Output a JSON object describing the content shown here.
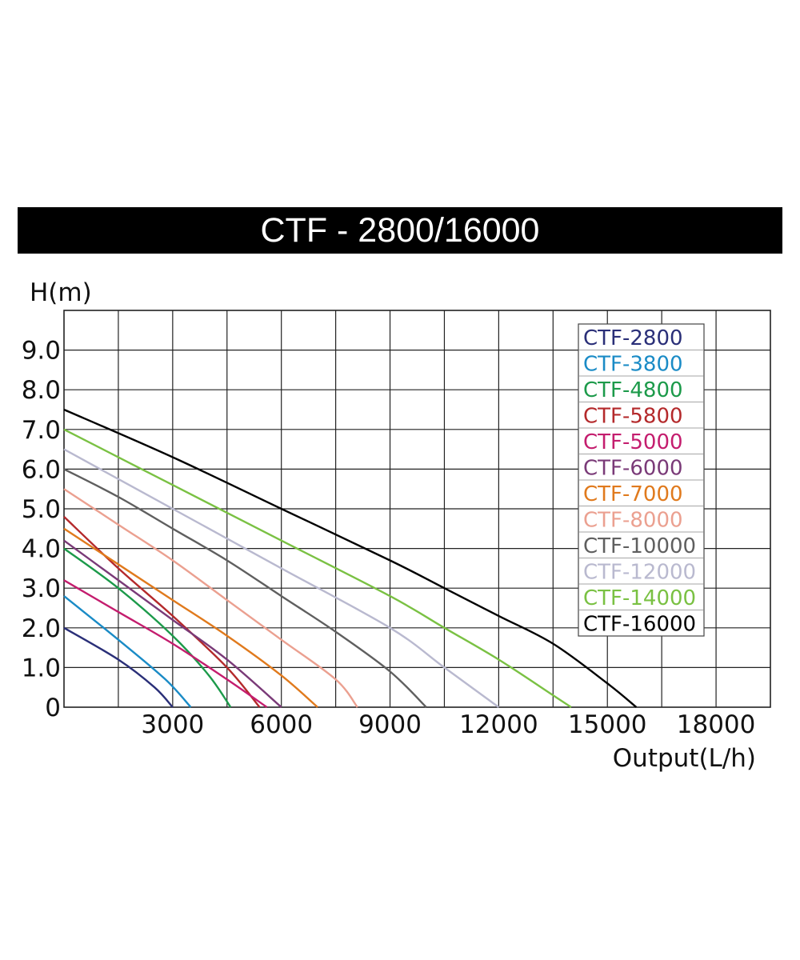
{
  "chart_data": {
    "type": "line",
    "title": "CTF - 2800/16000",
    "xlabel": "Output(L/h)",
    "ylabel": "H(m)",
    "xlim": [
      0,
      19500
    ],
    "ylim": [
      0,
      10
    ],
    "grid": true,
    "legend_position": "top-right",
    "x_ticks": [
      3000,
      6000,
      9000,
      12000,
      15000,
      18000
    ],
    "x_tick_labels": [
      "3000",
      "6000",
      "9000",
      "12000",
      "15000",
      "18000"
    ],
    "y_ticks": [
      0,
      1,
      2,
      3,
      4,
      5,
      6,
      7,
      8,
      9
    ],
    "y_tick_labels": [
      "0",
      "1.0",
      "2.0",
      "3.0",
      "4.0",
      "5.0",
      "6.0",
      "7.0",
      "8.0",
      "9.0"
    ],
    "series": [
      {
        "name": "CTF-2800",
        "color": "#2a2f78",
        "x": [
          0,
          1500,
          2500,
          3000
        ],
        "y": [
          2.0,
          1.2,
          0.5,
          0
        ]
      },
      {
        "name": "CTF-3800",
        "color": "#1a8bc6",
        "x": [
          0,
          1500,
          2800,
          3500
        ],
        "y": [
          2.8,
          1.7,
          0.7,
          0
        ]
      },
      {
        "name": "CTF-4800",
        "color": "#1c9a4a",
        "x": [
          0,
          1500,
          3000,
          4000,
          4600
        ],
        "y": [
          4.0,
          3.0,
          1.8,
          0.8,
          0
        ]
      },
      {
        "name": "CTF-5800",
        "color": "#b4292b",
        "x": [
          0,
          1500,
          3000,
          4500,
          5400
        ],
        "y": [
          4.8,
          3.5,
          2.3,
          1.0,
          0
        ]
      },
      {
        "name": "CTF-5000",
        "color": "#c41d6e",
        "x": [
          0,
          1500,
          3000,
          4500,
          5600
        ],
        "y": [
          3.2,
          2.4,
          1.6,
          0.7,
          0
        ]
      },
      {
        "name": "CTF-6000",
        "color": "#7a3a78",
        "x": [
          0,
          1500,
          3000,
          4500,
          6000
        ],
        "y": [
          4.2,
          3.2,
          2.2,
          1.2,
          0
        ]
      },
      {
        "name": "CTF-7000",
        "color": "#e07a1d",
        "x": [
          0,
          1500,
          3000,
          4500,
          6000,
          7000
        ],
        "y": [
          4.5,
          3.6,
          2.7,
          1.8,
          0.8,
          0
        ]
      },
      {
        "name": "CTF-8000",
        "color": "#eba090",
        "x": [
          0,
          1500,
          3000,
          4500,
          6000,
          7500,
          8100
        ],
        "y": [
          5.5,
          4.6,
          3.7,
          2.7,
          1.7,
          0.7,
          0
        ]
      },
      {
        "name": "CTF-10000",
        "color": "#5f5f5f",
        "x": [
          0,
          1500,
          3000,
          4500,
          6000,
          7500,
          9000,
          10000
        ],
        "y": [
          6.0,
          5.3,
          4.5,
          3.7,
          2.8,
          1.9,
          0.9,
          0
        ]
      },
      {
        "name": "CTF-12000",
        "color": "#b9b9cf",
        "x": [
          0,
          3000,
          6000,
          9000,
          10500,
          12000
        ],
        "y": [
          6.5,
          5.0,
          3.5,
          2.0,
          1.0,
          0
        ]
      },
      {
        "name": "CTF-14000",
        "color": "#7ac143",
        "x": [
          0,
          3000,
          6000,
          9000,
          10500,
          12000,
          13500,
          14000
        ],
        "y": [
          7.0,
          5.6,
          4.2,
          2.8,
          2.0,
          1.2,
          0.3,
          0
        ]
      },
      {
        "name": "CTF-16000",
        "color": "#000000",
        "x": [
          0,
          3000,
          6000,
          9000,
          10500,
          12000,
          13500,
          15000,
          15800
        ],
        "y": [
          7.5,
          6.3,
          5.0,
          3.7,
          3.0,
          2.3,
          1.6,
          0.6,
          0
        ]
      }
    ]
  }
}
